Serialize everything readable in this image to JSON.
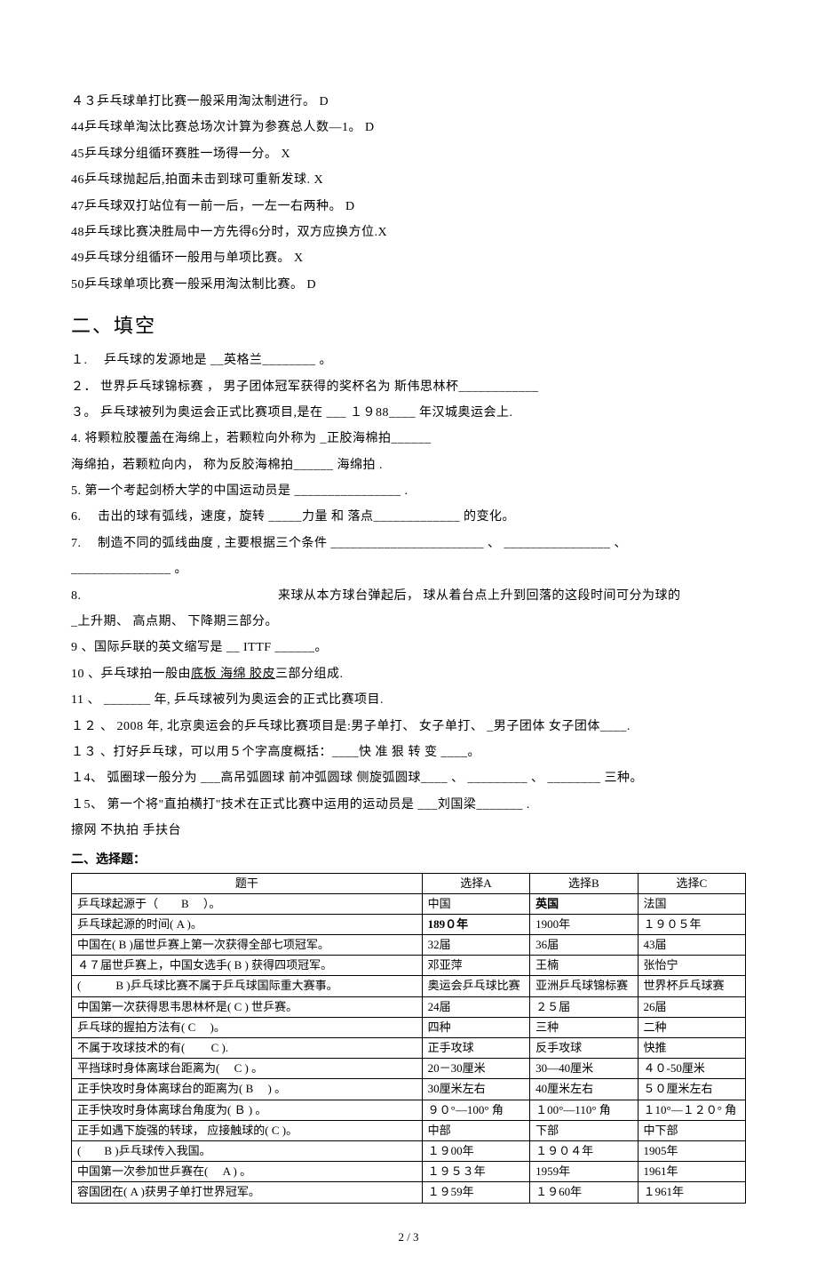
{
  "judgement_lines": [
    "４３乒乓球单打比赛一般采用淘汰制进行。 D",
    "44乒乓球单淘汰比赛总场次计算为参赛总人数—1。 D",
    "45乒乓球分组循环赛胜一场得一分。 X",
    "46乒乓球抛起后,拍面未击到球可重新发球. X",
    "47乒乓球双打站位有一前一后，一左一右两种。   D",
    "48乒乓球比赛决胜局中一方先得6分时，双方应换方位.X",
    "49乒乓球分组循环一般用与单项比赛。   X",
    "50乒乓球单项比赛一般采用淘汰制比赛。   D"
  ],
  "fill_section_title": "二、填空",
  "fill_lines": [
    "１.　 乒乓球的发源地是 __英格兰________ 。",
    "２． 世界乒乓球锦标赛  ， 男子团体冠军获得的奖杯名为 斯伟思林杯____________",
    "３。  乒乓球被列为奥运会正式比赛项目,是在 ___ １９88____ 年汉城奥运会上.",
    "4.                       将颗粒胶覆盖在海绵上，若颗粒向外称为                          _正胶海棉拍______",
    "海绵拍，若颗粒向内， 称为反胶海棉拍______ 海绵拍  .",
    "5. 第一个考起剑桥大学的中国运动员是 ________________ .",
    "6.　 击出的球有弧线，速度，旋转 _____力量 和 落点_____________ 的变化。",
    "7.　 制造不同的弧线曲度   ,    主要根据三个条件   _______________________  、 ________________  、",
    "_______________  。",
    "8. 　　　　　　　　　　　　　　　来球从本方球台弹起后， 球从着台点上升到回落的这段时间可分为球的",
    "_上升期、 高点期、 下降期三部分。",
    "9 、国际乒联的英文缩写是 __ ITTF  ______。",
    "10  、乒乓球拍一般由<span class=\"underline\">底板 海绵 胶皮</span>三部分组成.",
    "11 、 _______ 年, 乒乓球被列为奥运会的正式比赛项目.",
    "１２   、  2008 年, 北京奥运会的乒乓球比赛项目是:男子单打、 女子单打、 _男子团体 女子团体____.",
    "１３  、打好乒乓球，可以用５个字高度概括：____快 准 狠 转 变 ____。",
    "１4、 弧圈球一般分为 ___高吊弧圆球 前冲弧圆球 侧旋弧圆球____  、 _________ 、 ________ 三种。",
    "１5、 第一个将\"直拍横打\"技术在正式比赛中运用的运动员是   ___刘国梁_______  .",
    "擦网 不执拍 手扶台"
  ],
  "choice_title": "二、选择题：",
  "table": {
    "header": [
      "题干",
      "选择A",
      "选择B",
      "选择C"
    ],
    "rows": [
      [
        "乒乓球起源于（　　B 　）。",
        "中国",
        "<span class=\"bold\">英国</span>",
        "法国"
      ],
      [
        "乒乓球起源的时间( A )。",
        "<span class=\"bold\">189０年</span>",
        "1900年",
        "１９０５年"
      ],
      [
        "中国在(  B  )届世乒赛上第一次获得全部七项冠军。",
        "32届",
        "36届",
        "43届"
      ],
      [
        "４７届世乒赛上，中国女选手( B  ) 获得四项冠军。",
        "邓亚萍",
        "王楠",
        "张怡宁"
      ],
      [
        "(　　　B )乒乓球比赛不属于乒乓球国际重大赛事。",
        "奥运会乒乓球比赛",
        "亚洲乒乓球锦标赛",
        "世界杯乒乓球赛"
      ],
      [
        "中国第一次获得思韦思林杯是(  C  ) 世乒赛。",
        "24届",
        "２５届",
        "26届"
      ],
      [
        "乒乓球的握拍方法有( C 　)。",
        "四种",
        "三种",
        "二种"
      ],
      [
        "不属于攻球技术的有(　　 C  ).",
        "正手攻球",
        "反手攻球",
        "快推"
      ],
      [
        "平挡球时身体离球台距离为( 　C  ) 。",
        "20－30厘米",
        "30—40厘米",
        "４０-50厘米"
      ],
      [
        "正手快攻时身体离球台的距离为( B 　) 。",
        "30厘米左右",
        "40厘米左右",
        "５０厘米左右"
      ],
      [
        "正手快攻时身体离球台角度为( Ｂ ) 。",
        "９０°—100° 角",
        "１00°—110° 角",
        "１10°—１２０° 角"
      ],
      [
        "正手如遇下旋强的转球， 应接触球的( C   )。",
        "中部",
        "下部",
        "中下部"
      ],
      [
        "(　　B )乒乓球传入我国。",
        "１９00年",
        "１９０４年",
        "1905年"
      ],
      [
        "中国第一次参加世乒赛在(　 A  ) 。",
        "１９５３年",
        "1959年",
        "1961年"
      ],
      [
        "容国团在( A  )获男子单打世界冠军。",
        "１９59年",
        "１９60年",
        "１961年"
      ]
    ]
  },
  "page_number": "2 / 3"
}
